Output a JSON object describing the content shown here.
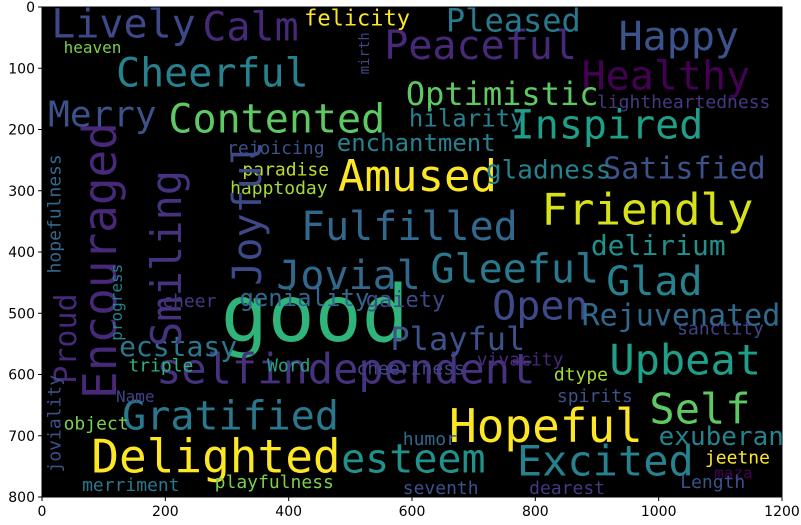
{
  "chart_data": {
    "type": "word_cloud",
    "title": "",
    "xlabel": "",
    "ylabel": "",
    "xlim": [
      0,
      1200
    ],
    "ylim": [
      800,
      0
    ],
    "x_ticks": [
      0,
      200,
      400,
      600,
      800,
      1000,
      1200
    ],
    "y_ticks": [
      0,
      100,
      200,
      300,
      400,
      500,
      600,
      700,
      800
    ],
    "background": "#000000",
    "colormap": "viridis",
    "words": [
      {
        "text": "good",
        "x": 290,
        "y": 545,
        "size": 78,
        "color": "#2fb47c",
        "vertical": false
      },
      {
        "text": "selfindependent",
        "x": 185,
        "y": 615,
        "size": 42,
        "color": "#46327e",
        "vertical": false
      },
      {
        "text": "Delighted",
        "x": 80,
        "y": 760,
        "size": 46,
        "color": "#fde725",
        "vertical": false
      },
      {
        "text": "Hopeful",
        "x": 660,
        "y": 710,
        "size": 46,
        "color": "#fde725",
        "vertical": false
      },
      {
        "text": "Amused",
        "x": 480,
        "y": 300,
        "size": 44,
        "color": "#fde725",
        "vertical": false
      },
      {
        "text": "Friendly",
        "x": 810,
        "y": 355,
        "size": 44,
        "color": "#d8e219",
        "vertical": false
      },
      {
        "text": "Excited",
        "x": 770,
        "y": 765,
        "size": 42,
        "color": "#26828e",
        "vertical": false
      },
      {
        "text": "Self",
        "x": 985,
        "y": 680,
        "size": 42,
        "color": "#5ec962",
        "vertical": false
      },
      {
        "text": "Upbeat",
        "x": 920,
        "y": 600,
        "size": 42,
        "color": "#1f9e89",
        "vertical": false
      },
      {
        "text": "Gratified",
        "x": 130,
        "y": 690,
        "size": 40,
        "color": "#2a788e",
        "vertical": false
      },
      {
        "text": "esteem",
        "x": 485,
        "y": 760,
        "size": 40,
        "color": "#21918c",
        "vertical": false
      },
      {
        "text": "Gleeful",
        "x": 630,
        "y": 450,
        "size": 40,
        "color": "#2a788e",
        "vertical": false
      },
      {
        "text": "Jovial",
        "x": 380,
        "y": 460,
        "size": 40,
        "color": "#31688e",
        "vertical": false
      },
      {
        "text": "Glad",
        "x": 915,
        "y": 470,
        "size": 40,
        "color": "#26828e",
        "vertical": false
      },
      {
        "text": "Open",
        "x": 730,
        "y": 510,
        "size": 40,
        "color": "#3e4989",
        "vertical": false
      },
      {
        "text": "Fulfilled",
        "x": 420,
        "y": 380,
        "size": 40,
        "color": "#31688e",
        "vertical": false
      },
      {
        "text": "Inspired",
        "x": 760,
        "y": 215,
        "size": 40,
        "color": "#1f9e89",
        "vertical": false
      },
      {
        "text": "Contented",
        "x": 205,
        "y": 205,
        "size": 40,
        "color": "#5ec962",
        "vertical": false
      },
      {
        "text": "Cheerful",
        "x": 120,
        "y": 130,
        "size": 40,
        "color": "#26828e",
        "vertical": false
      },
      {
        "text": "Peaceful",
        "x": 555,
        "y": 85,
        "size": 40,
        "color": "#482878",
        "vertical": false
      },
      {
        "text": "Healthy",
        "x": 875,
        "y": 135,
        "size": 40,
        "color": "#440154",
        "vertical": false
      },
      {
        "text": "Happy",
        "x": 935,
        "y": 70,
        "size": 40,
        "color": "#3b528b",
        "vertical": false
      },
      {
        "text": "Calm",
        "x": 260,
        "y": 55,
        "size": 40,
        "color": "#482878",
        "vertical": false
      },
      {
        "text": "Lively",
        "x": 15,
        "y": 50,
        "size": 40,
        "color": "#3e4989",
        "vertical": false
      },
      {
        "text": "Merry",
        "x": 10,
        "y": 195,
        "size": 36,
        "color": "#3b528b",
        "vertical": false
      },
      {
        "text": "Optimistic",
        "x": 590,
        "y": 160,
        "size": 32,
        "color": "#5ec962",
        "vertical": false
      },
      {
        "text": "Pleased",
        "x": 655,
        "y": 40,
        "size": 32,
        "color": "#2a788e",
        "vertical": false
      },
      {
        "text": "Playful",
        "x": 565,
        "y": 560,
        "size": 32,
        "color": "#3b528b",
        "vertical": false
      },
      {
        "text": "Rejuvenated",
        "x": 875,
        "y": 520,
        "size": 30,
        "color": "#31688e",
        "vertical": false
      },
      {
        "text": "Satisfied",
        "x": 910,
        "y": 280,
        "size": 30,
        "color": "#3b528b",
        "vertical": false
      },
      {
        "text": "delirium",
        "x": 890,
        "y": 405,
        "size": 28,
        "color": "#21918c",
        "vertical": false
      },
      {
        "text": "ecstasy",
        "x": 125,
        "y": 570,
        "size": 28,
        "color": "#2a788e",
        "vertical": false
      },
      {
        "text": "exuberance",
        "x": 1000,
        "y": 715,
        "size": 26,
        "color": "#26828e",
        "vertical": false
      },
      {
        "text": "gladness",
        "x": 720,
        "y": 280,
        "size": 26,
        "color": "#26828e",
        "vertical": false
      },
      {
        "text": "enchantment",
        "x": 478,
        "y": 235,
        "size": 24,
        "color": "#26828e",
        "vertical": false
      },
      {
        "text": "hilarity",
        "x": 595,
        "y": 195,
        "size": 24,
        "color": "#26828e",
        "vertical": false
      },
      {
        "text": "geniality",
        "x": 320,
        "y": 488,
        "size": 24,
        "color": "#31688e",
        "vertical": false
      },
      {
        "text": "felicity",
        "x": 425,
        "y": 30,
        "size": 22,
        "color": "#fde725",
        "vertical": false
      },
      {
        "text": "gaiety",
        "x": 525,
        "y": 490,
        "size": 22,
        "color": "#3e4989",
        "vertical": false
      },
      {
        "text": "vivacity",
        "x": 705,
        "y": 585,
        "size": 18,
        "color": "#482878",
        "vertical": false
      },
      {
        "text": "lightheartedness",
        "x": 900,
        "y": 165,
        "size": 18,
        "color": "#443983",
        "vertical": false
      },
      {
        "text": "sanctity",
        "x": 1030,
        "y": 535,
        "size": 18,
        "color": "#414487",
        "vertical": false
      },
      {
        "text": "rejoicing",
        "x": 300,
        "y": 240,
        "size": 18,
        "color": "#3b528b",
        "vertical": false
      },
      {
        "text": "paradise",
        "x": 325,
        "y": 275,
        "size": 18,
        "color": "#bddf26",
        "vertical": false
      },
      {
        "text": "happtoday",
        "x": 305,
        "y": 305,
        "size": 18,
        "color": "#a5db36",
        "vertical": false
      },
      {
        "text": "cheer",
        "x": 195,
        "y": 490,
        "size": 18,
        "color": "#443983",
        "vertical": false
      },
      {
        "text": "triple",
        "x": 140,
        "y": 595,
        "size": 18,
        "color": "#2db27d",
        "vertical": false
      },
      {
        "text": "Word",
        "x": 365,
        "y": 595,
        "size": 18,
        "color": "#20a486",
        "vertical": false
      },
      {
        "text": "cheeriness",
        "x": 510,
        "y": 600,
        "size": 18,
        "color": "#404688",
        "vertical": false
      },
      {
        "text": "dtype",
        "x": 830,
        "y": 610,
        "size": 18,
        "color": "#a5db36",
        "vertical": false
      },
      {
        "text": "Name",
        "x": 120,
        "y": 645,
        "size": 16,
        "color": "#414487",
        "vertical": false
      },
      {
        "text": "spirits",
        "x": 835,
        "y": 645,
        "size": 18,
        "color": "#3b528b",
        "vertical": false
      },
      {
        "text": "object",
        "x": 35,
        "y": 690,
        "size": 18,
        "color": "#7ad151",
        "vertical": false
      },
      {
        "text": "humor",
        "x": 585,
        "y": 715,
        "size": 18,
        "color": "#31688e",
        "vertical": false
      },
      {
        "text": "jeetne",
        "x": 1075,
        "y": 745,
        "size": 18,
        "color": "#fde725",
        "vertical": false
      },
      {
        "text": "maza",
        "x": 1090,
        "y": 770,
        "size": 16,
        "color": "#440154",
        "vertical": false
      },
      {
        "text": "merriment",
        "x": 65,
        "y": 790,
        "size": 18,
        "color": "#2a788e",
        "vertical": false
      },
      {
        "text": "playfulness",
        "x": 280,
        "y": 785,
        "size": 18,
        "color": "#7ad151",
        "vertical": false
      },
      {
        "text": "seventh",
        "x": 585,
        "y": 795,
        "size": 18,
        "color": "#3b528b",
        "vertical": false
      },
      {
        "text": "dearest",
        "x": 790,
        "y": 795,
        "size": 18,
        "color": "#443983",
        "vertical": false
      },
      {
        "text": "Length",
        "x": 1035,
        "y": 785,
        "size": 18,
        "color": "#3b528b",
        "vertical": false
      },
      {
        "text": "heaven",
        "x": 35,
        "y": 75,
        "size": 16,
        "color": "#7ad151",
        "vertical": false
      },
      {
        "text": "mirth",
        "x": 530,
        "y": 110,
        "size": 14,
        "color": "#414487",
        "vertical": true
      },
      {
        "text": "Encouraged",
        "x": 120,
        "y": 640,
        "size": 46,
        "color": "#482878",
        "vertical": true
      },
      {
        "text": "Smiling",
        "x": 225,
        "y": 555,
        "size": 42,
        "color": "#46327e",
        "vertical": true
      },
      {
        "text": "Joyful",
        "x": 355,
        "y": 455,
        "size": 40,
        "color": "#3e4989",
        "vertical": true
      },
      {
        "text": "Proud",
        "x": 55,
        "y": 615,
        "size": 30,
        "color": "#482878",
        "vertical": true
      },
      {
        "text": "hopefulness",
        "x": 30,
        "y": 435,
        "size": 18,
        "color": "#31688e",
        "vertical": true
      },
      {
        "text": "progress",
        "x": 130,
        "y": 545,
        "size": 16,
        "color": "#26828e",
        "vertical": true
      },
      {
        "text": "joviality",
        "x": 30,
        "y": 760,
        "size": 18,
        "color": "#3b528b",
        "vertical": true
      }
    ]
  }
}
